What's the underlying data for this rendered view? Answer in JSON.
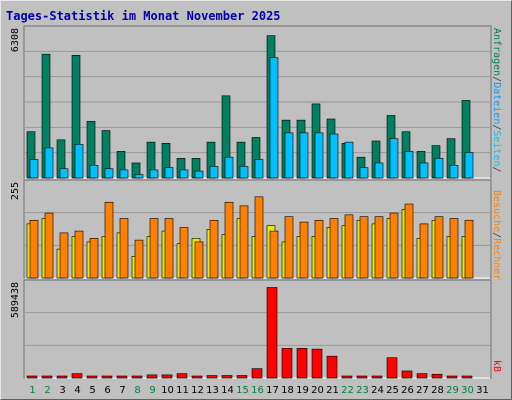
{
  "chart_data": {
    "type": "bar",
    "title": "Tages-Statistik im Monat November 2025",
    "categories": [
      "1",
      "2",
      "3",
      "4",
      "5",
      "6",
      "7",
      "8",
      "9",
      "10",
      "11",
      "12",
      "13",
      "14",
      "15",
      "16",
      "17",
      "18",
      "19",
      "20",
      "21",
      "22",
      "23",
      "24",
      "25",
      "26",
      "27",
      "28",
      "29",
      "30",
      "31"
    ],
    "weekend_days": [
      "1",
      "2",
      "8",
      "9",
      "15",
      "16",
      "22",
      "23",
      "29",
      "30"
    ],
    "panels": [
      {
        "name": "top",
        "ymax_label": "6308",
        "ylim": [
          0,
          6308
        ],
        "series": [
          {
            "name": "Anfragen",
            "color": "#008060",
            "values": [
              2000,
              5350,
              1650,
              5300,
              2450,
              2050,
              1150,
              650,
              1550,
              1500,
              850,
              850,
              1550,
              3550,
              1550,
              1750,
              6150,
              2500,
              2500,
              3200,
              2550,
              1500,
              900,
              1600,
              2700,
              2000,
              1150,
              1400,
              1700,
              3350,
              0
            ]
          },
          {
            "name": "Dateien",
            "color": "#00c0ff",
            "values": [
              800,
              1300,
              400,
              1450,
              550,
              400,
              350,
              150,
              350,
              450,
              350,
              300,
              500,
              900,
              500,
              800,
              5200,
              1950,
              1950,
              1950,
              1900,
              1550,
              450,
              650,
              1700,
              1150,
              650,
              850,
              550,
              1100,
              0
            ]
          }
        ],
        "legend_parts": [
          "Anfragen",
          "/",
          "Dateien",
          "/",
          "Seiten",
          "/"
        ]
      },
      {
        "name": "middle",
        "ymax_label": "255",
        "ylim": [
          0,
          255
        ],
        "series": [
          {
            "name": "Seiten",
            "color": "#e8e800",
            "values": [
              150,
              165,
              80,
              115,
              100,
              115,
              125,
              60,
              115,
              130,
              95,
              110,
              135,
              120,
              165,
              115,
              145,
              100,
              115,
              115,
              140,
              145,
              160,
              150,
              165,
              190,
              110,
              160,
              115,
              115,
              0
            ]
          },
          {
            "name": "Besuche",
            "color": "#ff8000",
            "values": [
              160,
              180,
              125,
              130,
              110,
              210,
              165,
              105,
              165,
              165,
              140,
              100,
              160,
              210,
              200,
              225,
              130,
              170,
              155,
              160,
              165,
              175,
              170,
              170,
              180,
              205,
              150,
              170,
              165,
              160,
              0
            ]
          }
        ],
        "legend_parts": [
          "Besuche",
          "/",
          "Rechner"
        ],
        "legend_colors": [
          "#ff8000",
          "#404040",
          "#ff8000"
        ]
      },
      {
        "name": "bottom",
        "ymax_label": "589438",
        "ylim": [
          0,
          589438
        ],
        "series": [
          {
            "name": "kB",
            "color": "#ff0000",
            "values": [
              8000,
              8000,
              8000,
              28000,
              12000,
              12000,
              12000,
              12000,
              20000,
              20000,
              28000,
              12000,
              16000,
              16000,
              16000,
              60000,
              580000,
              190000,
              190000,
              185000,
              140000,
              10000,
              10000,
              12000,
              130000,
              45000,
              28000,
              24000,
              10000,
              12000,
              0
            ]
          }
        ],
        "legend_parts": [
          "kB"
        ]
      }
    ],
    "grid": true,
    "colors": {
      "background": "#c0c0c0",
      "title": "#0000b0",
      "weekday_label": "#000000",
      "weekend_label": "#008040",
      "gridline": "#9a9a9a"
    }
  }
}
